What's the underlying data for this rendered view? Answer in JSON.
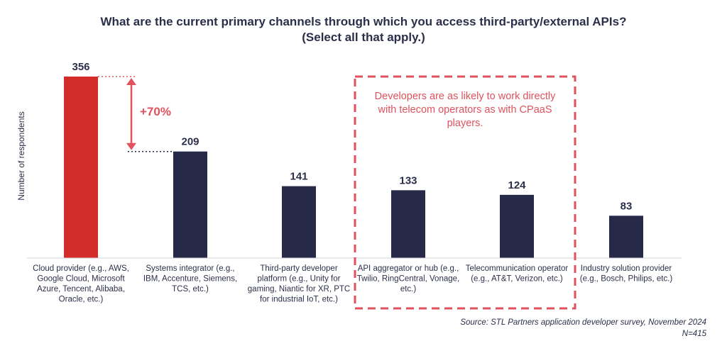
{
  "chart_data": {
    "type": "bar",
    "title_lines": [
      "What are the current primary channels through which you access third-party/external APIs?",
      "(Select all that apply.)"
    ],
    "ylabel": "Number of respondents",
    "xlabel": "",
    "ylim": [
      0,
      380
    ],
    "grid": false,
    "categories": [
      [
        "Cloud provider (e.g., AWS,",
        "Google Cloud, Microsoft",
        "Azure, Tencent, Alibaba,",
        "Oracle, etc.)"
      ],
      [
        "Systems integrator (e.g.,",
        "IBM, Accenture, Siemens,",
        "TCS, etc.)"
      ],
      [
        "Third-party developer",
        "platform (e.g., Unity for",
        "gaming, Niantic for XR, PTC",
        "for industrial IoT, etc.)"
      ],
      [
        "API aggregator or hub (e.g.,",
        "Twilio, RingCentral, Vonage,",
        "etc.)"
      ],
      [
        "Telecommunication operator",
        "(e.g., AT&T, Verizon, etc.)"
      ],
      [
        "Industry solution provider",
        "(e.g., Bosch, Philips, etc.)"
      ]
    ],
    "values": [
      356,
      209,
      141,
      133,
      124,
      83
    ],
    "highlight_index": 0,
    "delta_label": "+70%",
    "callout_lines": [
      "Developers are as likely to work directly",
      "with telecom operators as with CPaaS",
      "players."
    ],
    "source_lines": [
      "Source: STL Partners application developer survey, November 2024",
      "N=415"
    ]
  },
  "colors": {
    "bar": "#262a48",
    "highlight_bar": "#d32d2a",
    "accent": "#e0525d",
    "text": "#2b2f4a"
  }
}
